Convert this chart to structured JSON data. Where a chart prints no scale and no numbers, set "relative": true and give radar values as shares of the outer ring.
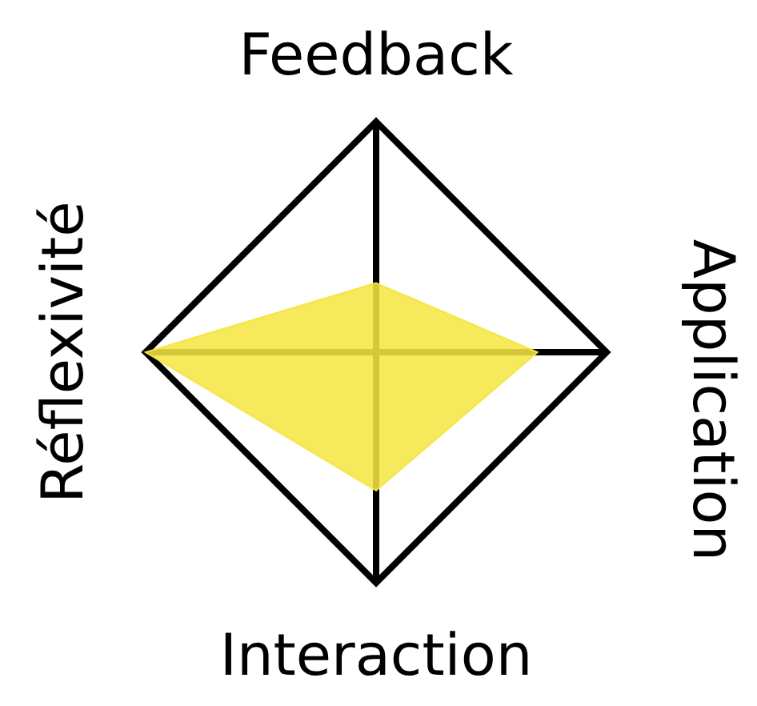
{
  "chart_data": {
    "type": "radar",
    "relative": true,
    "categories": [
      "Feedback",
      "Application",
      "Interaction",
      "Réflexivité"
    ],
    "series": [
      {
        "color": "#f5e642",
        "values": [
          0.3,
          0.7,
          0.6,
          1.0
        ]
      }
    ]
  }
}
